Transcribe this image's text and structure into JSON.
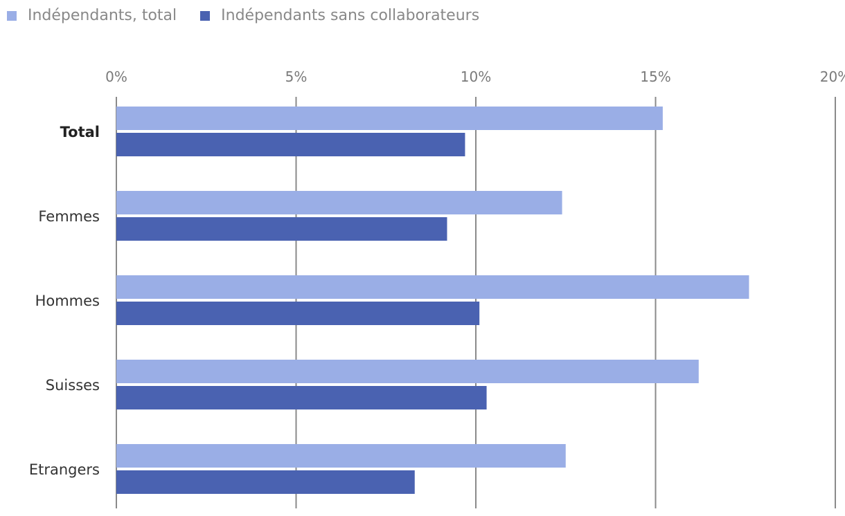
{
  "chart_data": {
    "type": "bar",
    "orientation": "horizontal",
    "categories": [
      "Total",
      "Femmes",
      "Hommes",
      "Suisses",
      "Etrangers"
    ],
    "bold_categories": [
      "Total"
    ],
    "series": [
      {
        "name": "Indépendants, total",
        "color": "#9aaee6",
        "values": [
          15.2,
          12.4,
          17.6,
          16.2,
          12.5
        ]
      },
      {
        "name": "Indépendants sans collaborateurs",
        "color": "#4a62b1",
        "values": [
          9.7,
          9.2,
          10.1,
          10.3,
          8.3
        ]
      }
    ],
    "x_ticks": [
      "0%",
      "5%",
      "10%",
      "15%",
      "20%"
    ],
    "xlim": [
      0,
      20
    ],
    "grid": true,
    "legend_position": "top-left"
  }
}
